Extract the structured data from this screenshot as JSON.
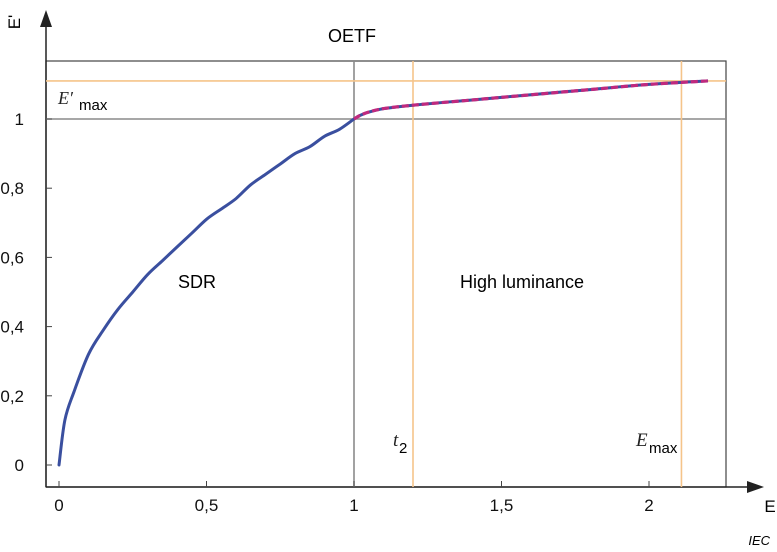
{
  "chart_data": {
    "type": "line",
    "title": "OETF",
    "xlabel": "E",
    "ylabel": "E'",
    "xlim": [
      -0.04,
      2.3
    ],
    "ylim": [
      -0.03,
      1.17
    ],
    "x_ticks": [
      0,
      0.5,
      1,
      1.5,
      2
    ],
    "x_tick_labels": [
      "0",
      "0,5",
      "1",
      "1,5",
      "2"
    ],
    "y_ticks": [
      0,
      0.2,
      0.4,
      0.6,
      0.8,
      1
    ],
    "y_tick_labels": [
      "0",
      "0,2",
      "0,4",
      "0,6",
      "0,8",
      "1"
    ],
    "grid": false,
    "series": [
      {
        "name": "SDR",
        "color": "#3a4f9f",
        "x": [
          0,
          0.02,
          0.05,
          0.1,
          0.15,
          0.2,
          0.25,
          0.3,
          0.35,
          0.4,
          0.45,
          0.5,
          0.55,
          0.6,
          0.65,
          0.7,
          0.75,
          0.8,
          0.85,
          0.9,
          0.95,
          1.0
        ],
        "values": [
          0,
          0.13,
          0.21,
          0.32,
          0.39,
          0.45,
          0.5,
          0.55,
          0.59,
          0.63,
          0.67,
          0.71,
          0.74,
          0.77,
          0.81,
          0.84,
          0.87,
          0.9,
          0.92,
          0.95,
          0.97,
          1.0
        ]
      },
      {
        "name": "High luminance",
        "color": "#c0297e",
        "x": [
          1.0,
          1.02,
          1.05,
          1.1,
          1.2,
          1.4,
          1.6,
          1.8,
          2.0,
          2.2
        ],
        "values": [
          1.0,
          1.01,
          1.02,
          1.03,
          1.04,
          1.055,
          1.07,
          1.085,
          1.1,
          1.11
        ]
      }
    ],
    "reference_lines": [
      {
        "orientation": "horizontal",
        "value": 1.0,
        "color": "#8a8a8a"
      },
      {
        "orientation": "vertical",
        "value": 1.0,
        "color": "#8a8a8a"
      },
      {
        "orientation": "horizontal",
        "value": 1.11,
        "color": "#f5c48a"
      },
      {
        "orientation": "vertical",
        "value": 1.2,
        "color": "#f5c48a"
      },
      {
        "orientation": "vertical",
        "value": 2.11,
        "color": "#f5c48a"
      }
    ],
    "annotations": [
      {
        "text_main": "E′",
        "text_sub": "max",
        "at": "horizontal line 1.11"
      },
      {
        "text_main": "t",
        "text_sub": "2",
        "at": "vertical line 1.2"
      },
      {
        "text_main": "E",
        "text_sub": "max",
        "at": "vertical line 2.11"
      }
    ],
    "region_labels": [
      "SDR",
      "High luminance"
    ],
    "region_label_colors": [
      "#2a7fbf",
      "#c0297e"
    ],
    "watermark": "IEC"
  }
}
